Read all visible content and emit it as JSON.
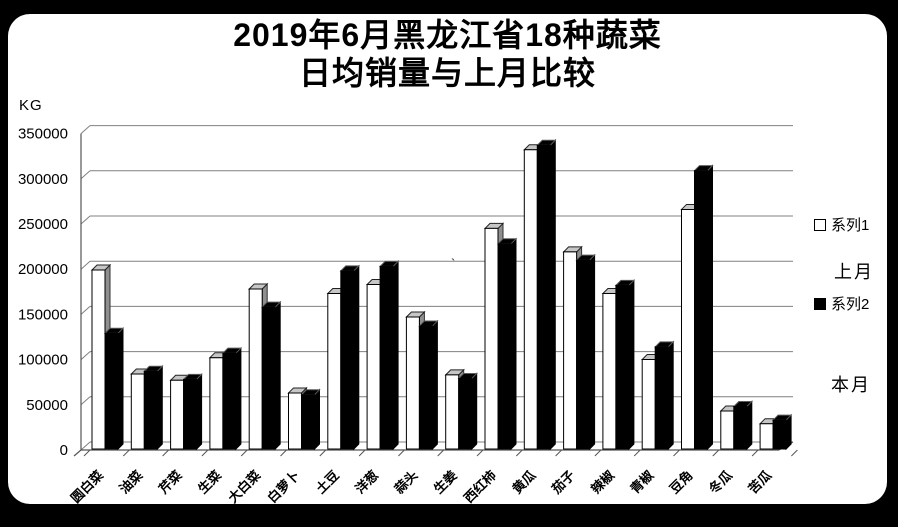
{
  "window": {
    "background_color": "#000000",
    "panel_color": "#ffffff"
  },
  "title": {
    "line1": "2019年6月黑龙江省18种蔬菜",
    "line2": "日均销量与上月比较"
  },
  "axis": {
    "unit_label": "KG"
  },
  "legend": {
    "series1_label": "系列1",
    "series1_note": "上月",
    "series2_label": "系列2",
    "series2_note": "本月",
    "series1_swatch_color": "#ffffff",
    "series2_swatch_color": "#000000"
  },
  "chart_data": {
    "type": "bar",
    "style": "3d-clustered-column",
    "title": "2019年6月黑龙江省18种蔬菜日均销量与上月比较",
    "ylabel": "KG",
    "xlabel": "",
    "ylim": [
      0,
      350000
    ],
    "y_tick_step": 50000,
    "y_tick_labels": [
      "0",
      "50000",
      "100000",
      "150000",
      "200000",
      "250000",
      "300000",
      "350000"
    ],
    "grid": true,
    "legend_position": "right",
    "categories": [
      "圆白菜",
      "油菜",
      "芹菜",
      "生菜",
      "大白菜",
      "白萝卜",
      "土豆",
      "洋葱",
      "蒜头",
      "生姜",
      "西红柿",
      "黄瓜",
      "茄子",
      "辣椒",
      "青椒",
      "豆角",
      "冬瓜",
      "苦瓜"
    ],
    "series": [
      {
        "name": "系列1",
        "meaning": "上月",
        "color": "#ffffff",
        "values": [
          198000,
          83000,
          76000,
          101000,
          177000,
          62000,
          172000,
          182000,
          146000,
          82000,
          244000,
          331000,
          218000,
          172000,
          99000,
          265000,
          42000,
          28000
        ]
      },
      {
        "name": "系列2",
        "meaning": "本月",
        "color": "#000000",
        "values": [
          128000,
          86000,
          77000,
          106000,
          157000,
          60000,
          197000,
          202000,
          136000,
          78000,
          227000,
          336000,
          209000,
          181000,
          113000,
          308000,
          47000,
          32000
        ]
      }
    ],
    "colors": {
      "gridline": "#808080",
      "axis": "#555555",
      "white_bar_cap": "#c6c6c6",
      "white_bar_side": "#8f8f8f"
    }
  },
  "artifacts": {
    "stray_mark": "`"
  }
}
